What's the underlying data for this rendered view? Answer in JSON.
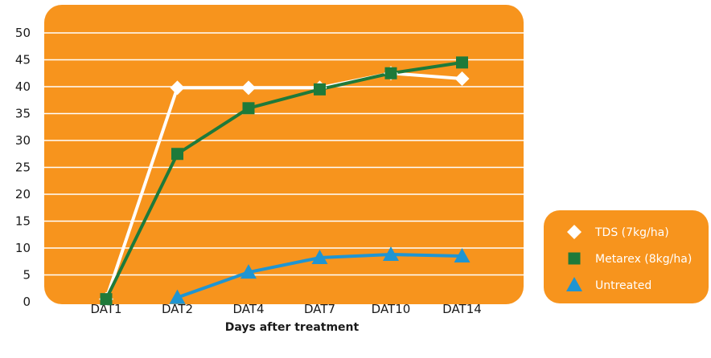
{
  "colors": {
    "plot_background": "#f7941d",
    "gridline": "#ffffff",
    "legend_background": "#f7941d"
  },
  "chart_data": {
    "type": "line",
    "categories": [
      "DAT1",
      "DAT2",
      "DAT4",
      "DAT7",
      "DAT10",
      "DAT14"
    ],
    "xlabel": "Days after treatment",
    "ylabel": "",
    "ylim": [
      0,
      50
    ],
    "yticks": [
      0,
      5,
      10,
      15,
      20,
      25,
      30,
      35,
      40,
      45,
      50
    ],
    "grid": true,
    "legend_position": "right",
    "series": [
      {
        "name": "TDS (7kg/ha)",
        "marker": "diamond",
        "color": "#ffffff",
        "values": [
          0.5,
          39.8,
          39.8,
          39.8,
          42.5,
          41.5
        ]
      },
      {
        "name": "Metarex (8kg/ha)",
        "marker": "square",
        "color": "#1e7a3a",
        "values": [
          0.5,
          27.5,
          36.0,
          39.5,
          42.5,
          44.5
        ]
      },
      {
        "name": "Untreated",
        "marker": "triangle",
        "color": "#1f95d2",
        "values": [
          null,
          0.8,
          5.5,
          8.2,
          8.8,
          8.5
        ]
      }
    ]
  }
}
